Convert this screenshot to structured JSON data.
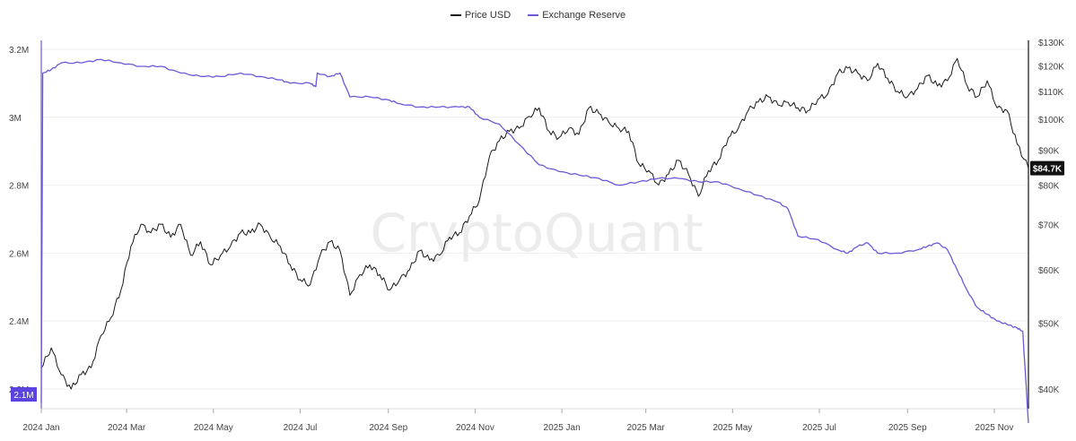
{
  "colors": {
    "price": "#1a1a1a",
    "reserve": "#6a5ad8",
    "reserve_badge": "#5b43e0",
    "price_badge": "#111111",
    "grid": "#eeeeee",
    "axis_text": "#444444",
    "watermark": "#ececec"
  },
  "watermark": "CryptoQuant",
  "chart_data": {
    "type": "line",
    "legend_position": "top-center",
    "grid": true,
    "x_axis": {
      "ticks": [
        "2024 Jan",
        "2024 Mar",
        "2024 May",
        "2024 Jul",
        "2024 Sep",
        "2024 Nov",
        "2025 Jan",
        "2025 Mar",
        "2025 May",
        "2025 Jul",
        "2025 Sep",
        "2025 Nov"
      ],
      "range": [
        "2024-01-01",
        "2025-11-25"
      ]
    },
    "left_axis": {
      "ticks": [
        "3.2M",
        "3M",
        "2.8M",
        "2.6M",
        "2.4M",
        "2.2M"
      ],
      "tick_values": [
        3.2,
        3.0,
        2.8,
        2.6,
        2.4,
        2.2
      ],
      "ylim": [
        2.2,
        3.2
      ],
      "unit": "M"
    },
    "right_axis": {
      "scale": "log",
      "ticks": [
        "$130K",
        "$120K",
        "$110K",
        "$100K",
        "$90K",
        "$80K",
        "$70K",
        "$60K",
        "$50K",
        "$40K"
      ],
      "tick_values": [
        130,
        120,
        110,
        100,
        90,
        80,
        70,
        60,
        50,
        40
      ],
      "ylim": [
        38,
        130
      ],
      "unit": "K USD"
    },
    "last_value_labels": {
      "price": "$84.7K",
      "reserve": "2.1M"
    },
    "series": [
      {
        "name": "Price USD",
        "axis": "right",
        "points": [
          [
            "2024-01-01",
            43
          ],
          [
            "2024-01-08",
            46
          ],
          [
            "2024-01-15",
            42
          ],
          [
            "2024-01-22",
            40
          ],
          [
            "2024-01-29",
            42
          ],
          [
            "2024-02-05",
            43
          ],
          [
            "2024-02-12",
            48
          ],
          [
            "2024-02-19",
            51
          ],
          [
            "2024-02-26",
            56
          ],
          [
            "2024-03-04",
            65
          ],
          [
            "2024-03-11",
            70
          ],
          [
            "2024-03-18",
            68
          ],
          [
            "2024-03-25",
            70
          ],
          [
            "2024-04-01",
            67
          ],
          [
            "2024-04-08",
            70
          ],
          [
            "2024-04-15",
            63
          ],
          [
            "2024-04-22",
            66
          ],
          [
            "2024-04-29",
            61
          ],
          [
            "2024-05-06",
            63
          ],
          [
            "2024-05-13",
            65
          ],
          [
            "2024-05-20",
            68
          ],
          [
            "2024-05-27",
            68
          ],
          [
            "2024-06-03",
            70
          ],
          [
            "2024-06-10",
            67
          ],
          [
            "2024-06-17",
            65
          ],
          [
            "2024-06-24",
            61
          ],
          [
            "2024-07-01",
            58
          ],
          [
            "2024-07-08",
            57
          ],
          [
            "2024-07-15",
            63
          ],
          [
            "2024-07-22",
            66
          ],
          [
            "2024-07-29",
            64
          ],
          [
            "2024-08-05",
            55
          ],
          [
            "2024-08-12",
            59
          ],
          [
            "2024-08-19",
            61
          ],
          [
            "2024-08-26",
            59
          ],
          [
            "2024-09-02",
            56
          ],
          [
            "2024-09-09",
            58
          ],
          [
            "2024-09-16",
            60
          ],
          [
            "2024-09-23",
            64
          ],
          [
            "2024-09-30",
            62
          ],
          [
            "2024-10-07",
            63
          ],
          [
            "2024-10-14",
            67
          ],
          [
            "2024-10-21",
            68
          ],
          [
            "2024-10-28",
            72
          ],
          [
            "2024-11-04",
            76
          ],
          [
            "2024-11-11",
            88
          ],
          [
            "2024-11-18",
            93
          ],
          [
            "2024-11-25",
            96
          ],
          [
            "2024-12-02",
            97
          ],
          [
            "2024-12-09",
            101
          ],
          [
            "2024-12-16",
            104
          ],
          [
            "2024-12-23",
            96
          ],
          [
            "2024-12-30",
            94
          ],
          [
            "2025-01-06",
            97
          ],
          [
            "2025-01-13",
            95
          ],
          [
            "2025-01-20",
            104
          ],
          [
            "2025-01-27",
            102
          ],
          [
            "2025-02-03",
            99
          ],
          [
            "2025-02-10",
            97
          ],
          [
            "2025-02-17",
            96
          ],
          [
            "2025-02-24",
            86
          ],
          [
            "2025-03-03",
            84
          ],
          [
            "2025-03-10",
            80
          ],
          [
            "2025-03-17",
            83
          ],
          [
            "2025-03-24",
            87
          ],
          [
            "2025-03-31",
            83
          ],
          [
            "2025-04-07",
            77
          ],
          [
            "2025-04-14",
            84
          ],
          [
            "2025-04-21",
            87
          ],
          [
            "2025-04-28",
            94
          ],
          [
            "2025-05-05",
            97
          ],
          [
            "2025-05-12",
            103
          ],
          [
            "2025-05-19",
            106
          ],
          [
            "2025-05-26",
            108
          ],
          [
            "2025-06-02",
            105
          ],
          [
            "2025-06-09",
            106
          ],
          [
            "2025-06-16",
            104
          ],
          [
            "2025-06-23",
            103
          ],
          [
            "2025-06-30",
            107
          ],
          [
            "2025-07-07",
            109
          ],
          [
            "2025-07-14",
            117
          ],
          [
            "2025-07-21",
            119
          ],
          [
            "2025-07-28",
            117
          ],
          [
            "2025-08-04",
            114
          ],
          [
            "2025-08-11",
            121
          ],
          [
            "2025-08-18",
            115
          ],
          [
            "2025-08-25",
            110
          ],
          [
            "2025-09-01",
            108
          ],
          [
            "2025-09-08",
            111
          ],
          [
            "2025-09-15",
            116
          ],
          [
            "2025-09-22",
            112
          ],
          [
            "2025-09-29",
            114
          ],
          [
            "2025-10-06",
            123
          ],
          [
            "2025-10-13",
            112
          ],
          [
            "2025-10-20",
            108
          ],
          [
            "2025-10-27",
            114
          ],
          [
            "2025-11-03",
            104
          ],
          [
            "2025-11-10",
            103
          ],
          [
            "2025-11-17",
            92
          ],
          [
            "2025-11-25",
            84.7
          ]
        ]
      },
      {
        "name": "Exchange Reserve",
        "axis": "left",
        "points": [
          [
            "2024-01-01",
            2.16
          ],
          [
            "2024-01-02",
            3.13
          ],
          [
            "2024-01-08",
            3.14
          ],
          [
            "2024-01-15",
            3.16
          ],
          [
            "2024-01-29",
            3.16
          ],
          [
            "2024-02-12",
            3.17
          ],
          [
            "2024-02-26",
            3.16
          ],
          [
            "2024-03-11",
            3.15
          ],
          [
            "2024-03-25",
            3.15
          ],
          [
            "2024-04-08",
            3.13
          ],
          [
            "2024-04-22",
            3.12
          ],
          [
            "2024-05-06",
            3.12
          ],
          [
            "2024-05-20",
            3.13
          ],
          [
            "2024-06-03",
            3.12
          ],
          [
            "2024-06-17",
            3.11
          ],
          [
            "2024-06-24",
            3.1
          ],
          [
            "2024-07-08",
            3.1
          ],
          [
            "2024-07-12",
            3.09
          ],
          [
            "2024-07-13",
            3.13
          ],
          [
            "2024-07-22",
            3.12
          ],
          [
            "2024-07-29",
            3.13
          ],
          [
            "2024-08-05",
            3.06
          ],
          [
            "2024-08-19",
            3.06
          ],
          [
            "2024-09-02",
            3.05
          ],
          [
            "2024-09-09",
            3.04
          ],
          [
            "2024-09-23",
            3.03
          ],
          [
            "2024-10-07",
            3.03
          ],
          [
            "2024-10-21",
            3.03
          ],
          [
            "2024-10-28",
            3.03
          ],
          [
            "2024-11-04",
            3.0
          ],
          [
            "2024-11-18",
            2.98
          ],
          [
            "2024-12-02",
            2.92
          ],
          [
            "2024-12-16",
            2.86
          ],
          [
            "2024-12-30",
            2.84
          ],
          [
            "2025-01-13",
            2.83
          ],
          [
            "2025-01-27",
            2.82
          ],
          [
            "2025-02-10",
            2.8
          ],
          [
            "2025-02-24",
            2.81
          ],
          [
            "2025-03-10",
            2.82
          ],
          [
            "2025-03-24",
            2.82
          ],
          [
            "2025-04-07",
            2.81
          ],
          [
            "2025-04-21",
            2.81
          ],
          [
            "2025-05-05",
            2.79
          ],
          [
            "2025-05-19",
            2.77
          ],
          [
            "2025-06-02",
            2.75
          ],
          [
            "2025-06-09",
            2.73
          ],
          [
            "2025-06-16",
            2.65
          ],
          [
            "2025-06-30",
            2.64
          ],
          [
            "2025-07-14",
            2.61
          ],
          [
            "2025-07-21",
            2.6
          ],
          [
            "2025-07-28",
            2.62
          ],
          [
            "2025-08-04",
            2.63
          ],
          [
            "2025-08-11",
            2.6
          ],
          [
            "2025-08-25",
            2.6
          ],
          [
            "2025-09-08",
            2.61
          ],
          [
            "2025-09-15",
            2.62
          ],
          [
            "2025-09-22",
            2.63
          ],
          [
            "2025-09-29",
            2.61
          ],
          [
            "2025-10-06",
            2.55
          ],
          [
            "2025-10-13",
            2.49
          ],
          [
            "2025-10-20",
            2.44
          ],
          [
            "2025-10-27",
            2.42
          ],
          [
            "2025-11-03",
            2.4
          ],
          [
            "2025-11-10",
            2.39
          ],
          [
            "2025-11-17",
            2.38
          ],
          [
            "2025-11-21",
            2.37
          ],
          [
            "2025-11-25",
            2.1
          ]
        ]
      }
    ]
  }
}
